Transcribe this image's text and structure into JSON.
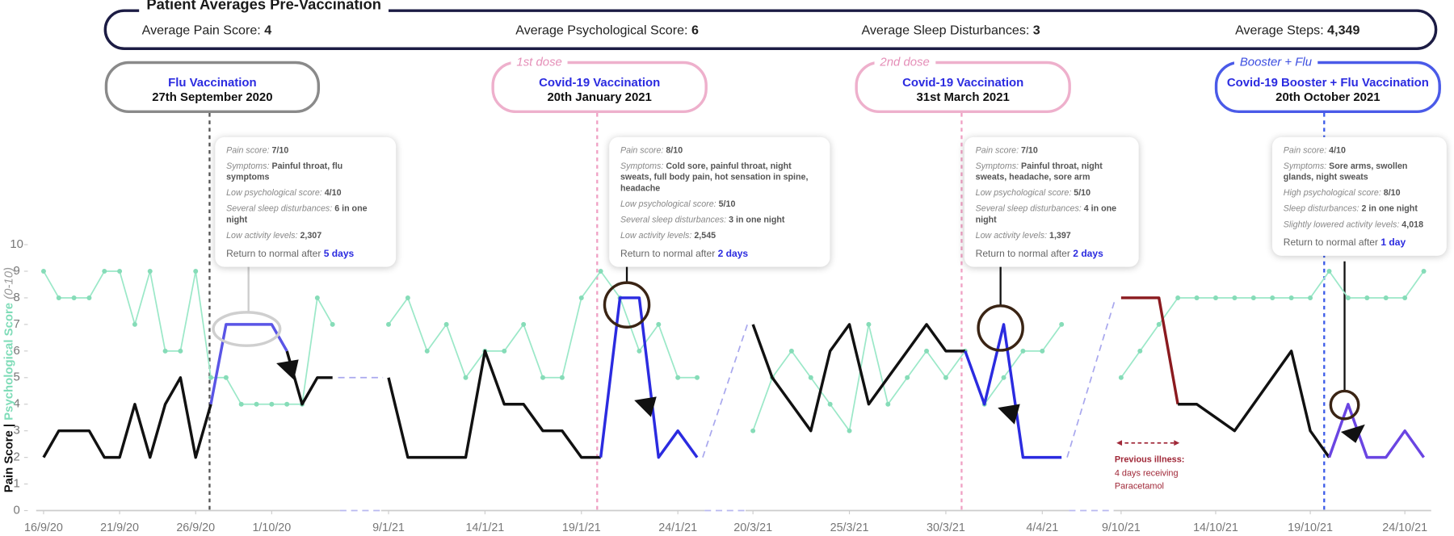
{
  "header": {
    "title": "Patient Averages Pre-Vaccination",
    "stats": [
      {
        "label": "Average Pain Score:",
        "value": 4
      },
      {
        "label": "Average Psychological Score:",
        "value": 6
      },
      {
        "label": "Average Sleep Disturbances:",
        "value": 3
      },
      {
        "label": "Average Steps:",
        "value": {
          "value": 4349,
          "label": "4,349"
        }
      }
    ]
  },
  "events": [
    {
      "name": "Flu Vaccination",
      "date": "27th September 2020",
      "card": {
        "lines": [
          {
            "label": "Pain score:",
            "value": "7/10"
          },
          {
            "label": "Symptoms:",
            "value": "Painful throat, flu symptoms"
          },
          {
            "label": "Low psychological score:",
            "value": "4/10"
          },
          {
            "label": "Several sleep disturbances:",
            "value": "6 in one night"
          },
          {
            "label": "Low activity levels:",
            "value": "2,307"
          }
        ],
        "return": {
          "text": "Return to normal after",
          "value": "5 days"
        }
      }
    },
    {
      "dose": "1st dose",
      "name": "Covid-19 Vaccination",
      "date": "20th January 2021",
      "card": {
        "lines": [
          {
            "label": "Pain score:",
            "value": "8/10"
          },
          {
            "label": "Symptoms:",
            "value": "Cold sore, painful throat, night sweats, full body pain, hot sensation in spine, headache"
          },
          {
            "label": "Low psychological score:",
            "value": "5/10"
          },
          {
            "label": "Several sleep disturbances:",
            "value": "3 in one night"
          },
          {
            "label": "Low activity levels:",
            "value": "2,545"
          }
        ],
        "return": {
          "text": "Return to normal after",
          "value": "2 days"
        }
      }
    },
    {
      "dose": "2nd dose",
      "name": "Covid-19 Vaccination",
      "date": "31st March 2021",
      "card": {
        "lines": [
          {
            "label": "Pain score:",
            "value": "7/10"
          },
          {
            "label": "Symptoms:",
            "value": "Painful throat, night sweats, headache, sore arm"
          },
          {
            "label": "Low psychological score:",
            "value": "5/10"
          },
          {
            "label": "Several sleep disturbances:",
            "value": "4 in one night"
          },
          {
            "label": "Low activity levels:",
            "value": "1,397"
          }
        ],
        "return": {
          "text": "Return to normal after",
          "value": "2 days"
        }
      }
    },
    {
      "dose": "Booster + Flu",
      "name": "Covid-19 Booster + Flu Vaccination",
      "date": "20th October 2021",
      "card": {
        "lines": [
          {
            "label": "Pain score:",
            "value": "4/10"
          },
          {
            "label": "Symptoms:",
            "value": "Sore arms, swollen glands, night sweats"
          },
          {
            "label": "High psychological score:",
            "value": "8/10"
          },
          {
            "label": "Sleep disturbances:",
            "value": "2 in one night"
          },
          {
            "label": "Slightly lowered activity levels:",
            "value": "4,018"
          }
        ],
        "return": {
          "text": "Return to normal after",
          "value": "1 day"
        }
      }
    }
  ],
  "chart_data": {
    "type": "line",
    "y_label": {
      "pain": "Pain Score",
      "separator": "|",
      "psych": "Psychological Score",
      "range": "(0-10)"
    },
    "ylim": [
      0,
      10
    ],
    "yticks": [
      0,
      1,
      2,
      3,
      4,
      5,
      6,
      7,
      8,
      9,
      10
    ],
    "panels": [
      {
        "categories": [
          "16/9/20",
          null,
          null,
          null,
          null,
          "21/9/20",
          null,
          null,
          null,
          null,
          "26/9/20",
          null,
          null,
          null,
          null,
          "1/10/20",
          null,
          null,
          null,
          null
        ],
        "series": [
          {
            "color": "#9be8c8",
            "markers": true,
            "values": [
              9,
              8,
              8,
              8,
              9,
              9,
              7,
              9,
              6,
              6,
              9,
              5,
              5,
              4,
              4,
              4,
              4,
              4,
              8,
              7
            ]
          },
          {
            "color": "#111111",
            "values": [
              2,
              3,
              3,
              3,
              2,
              2,
              4,
              2,
              4,
              5,
              2,
              4,
              null,
              null,
              null,
              null,
              6,
              4,
              5,
              5
            ]
          },
          {
            "color": "#5a55e6",
            "values": [
              null,
              null,
              null,
              null,
              null,
              null,
              null,
              null,
              null,
              null,
              null,
              4,
              7,
              7,
              7,
              7,
              6,
              null,
              null,
              null
            ]
          }
        ]
      },
      {
        "categories": [
          "9/1/21",
          null,
          null,
          null,
          null,
          "14/1/21",
          null,
          null,
          null,
          null,
          "19/1/21",
          null,
          null,
          null,
          null,
          "24/1/21",
          null
        ],
        "series": [
          {
            "color": "#9be8c8",
            "markers": true,
            "values": [
              7,
              8,
              6,
              7,
              5,
              6,
              6,
              7,
              5,
              5,
              8,
              9,
              8,
              6,
              7,
              5,
              5
            ]
          },
          {
            "color": "#111111",
            "values": [
              5,
              2,
              2,
              2,
              2,
              6,
              4,
              4,
              3,
              3,
              2,
              2,
              null,
              null,
              null,
              null,
              null
            ]
          },
          {
            "color": "#2b2be0",
            "values": [
              null,
              null,
              null,
              null,
              null,
              null,
              null,
              null,
              null,
              null,
              null,
              2,
              8,
              8,
              2,
              3,
              2
            ]
          }
        ]
      },
      {
        "categories": [
          "20/3/21",
          null,
          null,
          null,
          null,
          "25/3/21",
          null,
          null,
          null,
          null,
          "30/3/21",
          null,
          null,
          null,
          null,
          "4/4/21",
          null
        ],
        "series": [
          {
            "color": "#9be8c8",
            "markers": true,
            "values": [
              3,
              5,
              6,
              5,
              4,
              3,
              7,
              4,
              5,
              6,
              5,
              6,
              4,
              5,
              6,
              6,
              7
            ]
          },
          {
            "color": "#111111",
            "values": [
              7,
              5,
              4,
              3,
              6,
              7,
              4,
              5,
              6,
              7,
              6,
              6,
              null,
              null,
              null,
              null,
              null
            ]
          },
          {
            "color": "#2b2be0",
            "values": [
              null,
              null,
              null,
              null,
              null,
              null,
              null,
              null,
              null,
              null,
              null,
              6,
              4,
              7,
              2,
              2,
              2
            ]
          }
        ]
      },
      {
        "categories": [
          "9/10/21",
          null,
          null,
          null,
          null,
          "14/10/21",
          null,
          null,
          null,
          null,
          "19/10/21",
          null,
          null,
          null,
          null,
          "24/10/21",
          null
        ],
        "series": [
          {
            "color": "#9be8c8",
            "markers": true,
            "values": [
              5,
              6,
              7,
              8,
              8,
              8,
              8,
              8,
              8,
              8,
              8,
              9,
              8,
              8,
              8,
              8,
              9
            ]
          },
          {
            "color": "#8b1a1f",
            "values": [
              8,
              8,
              8,
              4,
              null,
              null,
              null,
              null,
              null,
              null,
              null,
              null,
              null,
              null,
              null,
              null,
              null
            ]
          },
          {
            "color": "#111111",
            "values": [
              null,
              null,
              null,
              4,
              4,
              3.5,
              3,
              4,
              5,
              6,
              3,
              2,
              null,
              null,
              null,
              null,
              null
            ]
          },
          {
            "color": "#6a45e2",
            "values": [
              null,
              null,
              null,
              null,
              null,
              null,
              null,
              null,
              null,
              null,
              null,
              2,
              4,
              2,
              2,
              3,
              2
            ]
          }
        ]
      }
    ],
    "annotation": {
      "title": "Previous illness:",
      "lines": [
        "4 days receiving",
        "Paracetamol"
      ]
    }
  }
}
